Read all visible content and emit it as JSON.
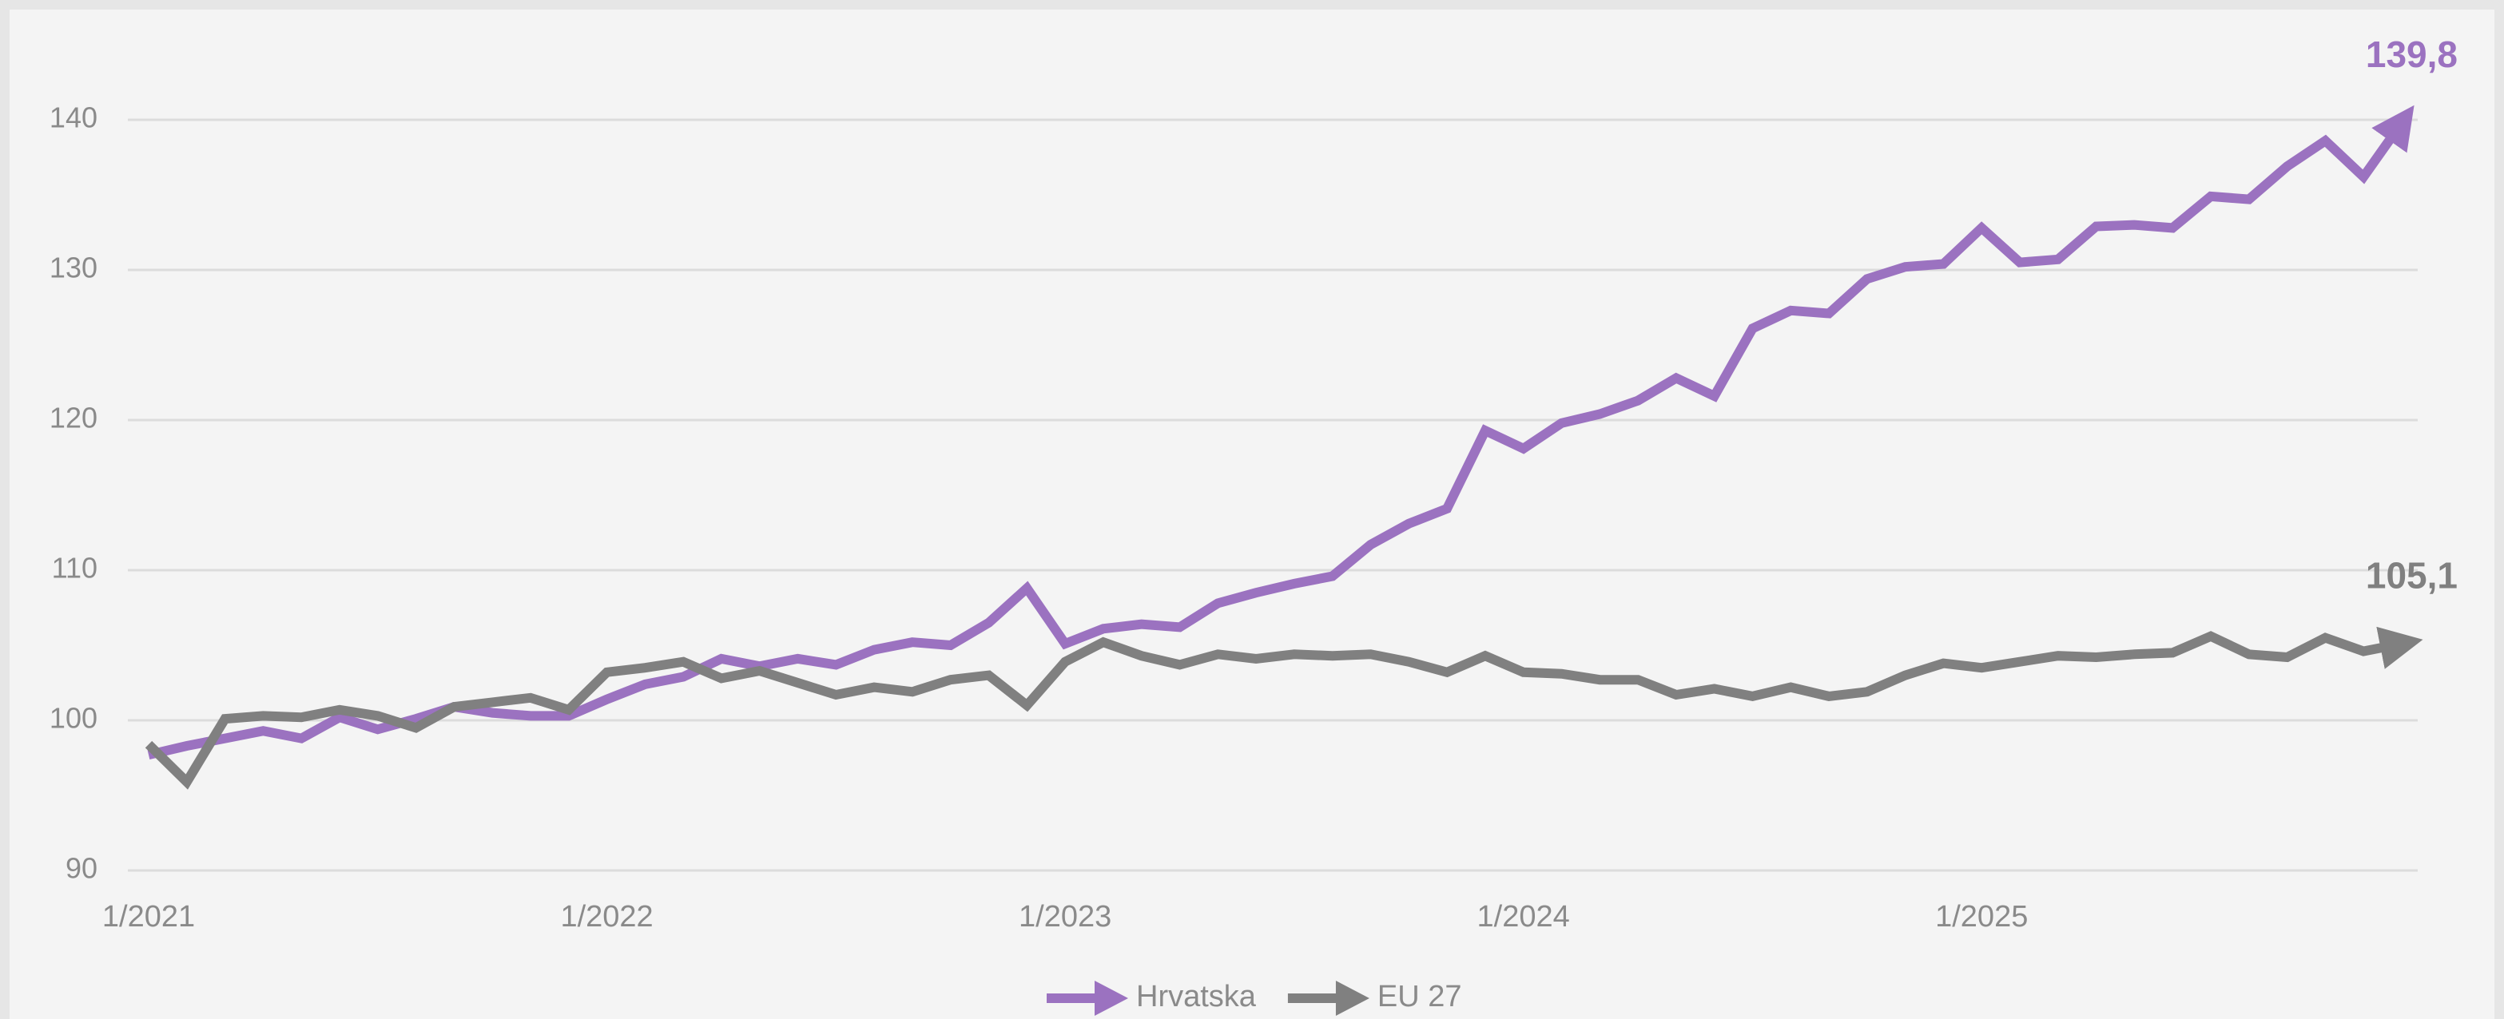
{
  "chart_data": {
    "type": "line",
    "categories": [
      "1/2021",
      null,
      null,
      null,
      null,
      null,
      null,
      null,
      null,
      null,
      null,
      null,
      "1/2022",
      null,
      null,
      null,
      null,
      null,
      null,
      null,
      null,
      null,
      null,
      null,
      "1/2023",
      null,
      null,
      null,
      null,
      null,
      null,
      null,
      null,
      null,
      null,
      null,
      "1/2024",
      null,
      null,
      null,
      null,
      null,
      null,
      null,
      null,
      null,
      null,
      null,
      "1/2025",
      null,
      null,
      null,
      null,
      null,
      null,
      null,
      null,
      null,
      null,
      null
    ],
    "series": [
      {
        "name": "Hrvatska",
        "color": "#9b72c0",
        "values": [
          97.7,
          98.3,
          98.8,
          99.3,
          98.8,
          100.2,
          99.4,
          100.1,
          100.9,
          100.5,
          100.3,
          100.3,
          101.4,
          102.4,
          102.9,
          104.1,
          103.6,
          104.1,
          103.7,
          104.7,
          105.2,
          105.0,
          106.5,
          108.8,
          105.1,
          106.1,
          106.4,
          106.2,
          107.8,
          108.5,
          109.1,
          109.6,
          111.7,
          113.1,
          114.1,
          119.3,
          118.1,
          119.8,
          120.4,
          121.3,
          122.8,
          121.6,
          126.1,
          127.3,
          127.1,
          129.4,
          130.2,
          130.4,
          132.8,
          130.5,
          130.7,
          132.9,
          133.0,
          132.8,
          134.9,
          134.7,
          136.9,
          138.6,
          136.2,
          139.8
        ],
        "value_labels": [
          null,
          null,
          null,
          null,
          null,
          null,
          null,
          null,
          null,
          null,
          null,
          null,
          null,
          null,
          null,
          null,
          null,
          null,
          null,
          null,
          null,
          null,
          null,
          null,
          null,
          null,
          null,
          null,
          null,
          null,
          null,
          null,
          null,
          null,
          null,
          null,
          null,
          null,
          null,
          null,
          null,
          null,
          null,
          null,
          null,
          null,
          null,
          null,
          null,
          null,
          null,
          null,
          null,
          null,
          null,
          null,
          null,
          null,
          null,
          "139,8"
        ]
      },
      {
        "name": "EU 27",
        "color": "#808080",
        "values": [
          98.4,
          95.9,
          100.1,
          100.3,
          100.2,
          100.7,
          100.3,
          99.5,
          100.9,
          101.2,
          101.5,
          100.7,
          103.2,
          103.5,
          103.9,
          102.8,
          103.3,
          102.5,
          101.7,
          102.2,
          101.9,
          102.7,
          103.0,
          101.0,
          103.9,
          105.2,
          104.3,
          103.7,
          104.4,
          104.1,
          104.4,
          104.3,
          104.4,
          103.9,
          103.2,
          104.3,
          103.2,
          103.1,
          102.7,
          102.7,
          101.7,
          102.1,
          101.6,
          102.2,
          101.6,
          101.9,
          103.0,
          103.8,
          103.5,
          103.9,
          104.3,
          104.2,
          104.4,
          104.5,
          105.6,
          104.4,
          104.2,
          105.5,
          104.6,
          105.1
        ],
        "value_labels": [
          null,
          null,
          null,
          null,
          null,
          null,
          null,
          null,
          null,
          null,
          null,
          null,
          null,
          null,
          null,
          null,
          null,
          null,
          null,
          null,
          null,
          null,
          null,
          null,
          null,
          null,
          null,
          null,
          null,
          null,
          null,
          null,
          null,
          null,
          null,
          null,
          null,
          null,
          null,
          null,
          null,
          null,
          null,
          null,
          null,
          null,
          null,
          null,
          null,
          null,
          null,
          null,
          null,
          null,
          null,
          null,
          null,
          null,
          null,
          "105,1"
        ]
      }
    ],
    "ylim": [
      90,
      145
    ],
    "yticks": [
      90,
      100,
      110,
      120,
      130,
      140
    ],
    "grid": true,
    "legend": "bottom"
  }
}
